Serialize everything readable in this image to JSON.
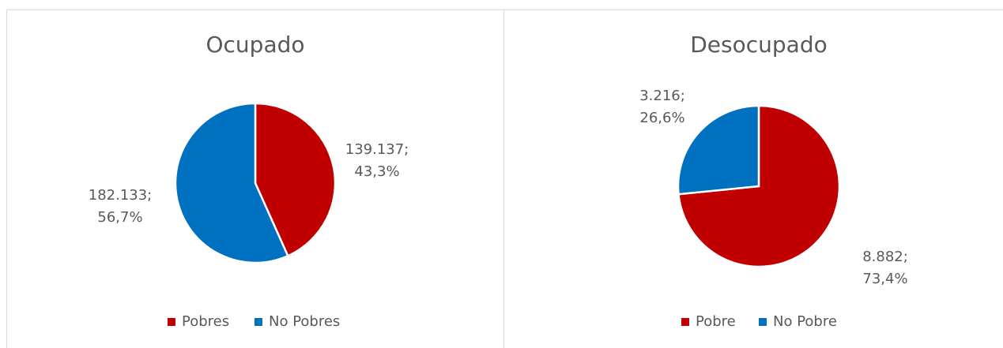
{
  "chart_data": [
    {
      "type": "pie",
      "title": "Ocupado",
      "categories": [
        "Pobres",
        "No Pobres"
      ],
      "values": [
        139137,
        182133
      ],
      "value_labels": [
        [
          "139.137;",
          "43,3%"
        ],
        [
          "182.133;",
          "56,7%"
        ]
      ],
      "colors": [
        "#c00000",
        "#0070c0"
      ],
      "legend": "bottom"
    },
    {
      "type": "pie",
      "title": "Desocupado",
      "categories": [
        "Pobre",
        "No Pobre"
      ],
      "values": [
        8882,
        3216
      ],
      "value_labels": [
        [
          "8.882;",
          "73,4%"
        ],
        [
          "3.216;",
          "26,6%"
        ]
      ],
      "colors": [
        "#c00000",
        "#0070c0"
      ],
      "legend": "bottom"
    }
  ]
}
